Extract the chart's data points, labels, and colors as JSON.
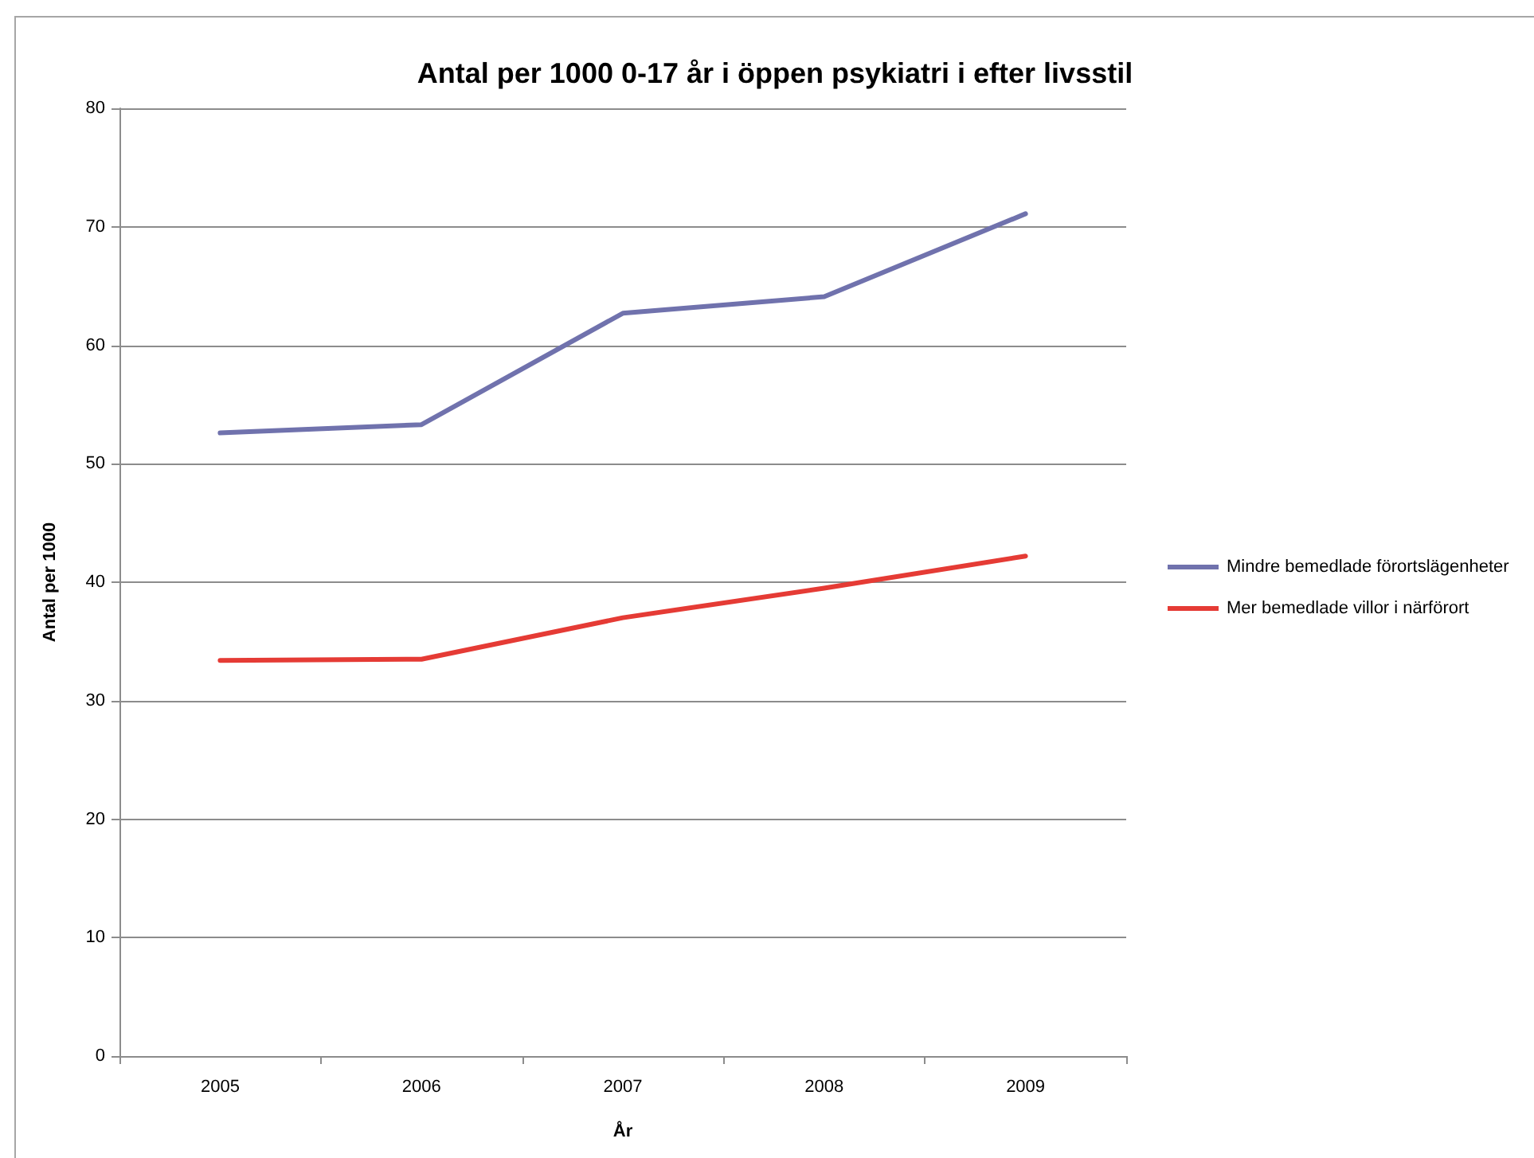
{
  "chart_data": {
    "type": "line",
    "title": "Antal per 1000 0-17 år i öppen psykiatri i efter livsstil",
    "xlabel": "År",
    "ylabel": "Antal per 1000",
    "categories": [
      "2005",
      "2006",
      "2007",
      "2008",
      "2009"
    ],
    "series": [
      {
        "name": "Mindre bemedlade förortslägenheter",
        "color": "#7072ad",
        "values": [
          52.6,
          53.3,
          62.7,
          64.1,
          71.1
        ]
      },
      {
        "name": "Mer bemedlade villor i närförort",
        "color": "#e53b35",
        "values": [
          33.4,
          33.5,
          37.0,
          39.5,
          42.2
        ]
      }
    ],
    "ylim": [
      0,
      80
    ],
    "yticks": [
      0,
      10,
      20,
      30,
      40,
      50,
      60,
      70,
      80
    ],
    "grid": "y",
    "legend": "right",
    "marker": "none",
    "line_style": "solid"
  }
}
